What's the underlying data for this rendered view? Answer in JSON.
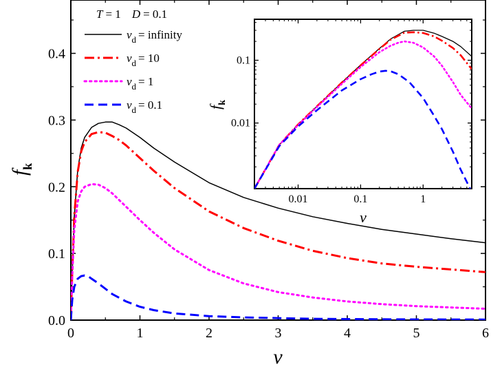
{
  "chart_data": [
    {
      "type": "line",
      "title": "",
      "xlabel": "v",
      "ylabel": "f",
      "ylabel_sub": "k",
      "xlim": [
        0,
        6
      ],
      "ylim": [
        0,
        0.48
      ],
      "xticks": [
        0,
        1,
        2,
        3,
        4,
        5,
        6
      ],
      "yticks": [
        0.0,
        0.1,
        0.2,
        0.3,
        0.4
      ],
      "xtick_labels": [
        "0",
        "1",
        "2",
        "3",
        "4",
        "5",
        "6"
      ],
      "ytick_labels": [
        "0.0",
        "0.1",
        "0.2",
        "0.3",
        "0.4"
      ],
      "legend": {
        "position": "top-left",
        "header": {
          "T": "T",
          "T_value": "= 1",
          "D": "D",
          "D_value": "= 0.1"
        },
        "var": "v",
        "var_sub": "d"
      },
      "series": [
        {
          "name": "= infinity",
          "color": "#000000",
          "style": "solid",
          "x": [
            0,
            0.02,
            0.05,
            0.1,
            0.15,
            0.2,
            0.3,
            0.4,
            0.5,
            0.6,
            0.7,
            0.8,
            1.0,
            1.2,
            1.5,
            2.0,
            2.5,
            3.0,
            3.5,
            4.0,
            4.5,
            5.0,
            5.5,
            6.0
          ],
          "y": [
            0,
            0.07,
            0.155,
            0.225,
            0.258,
            0.274,
            0.289,
            0.295,
            0.297,
            0.297,
            0.293,
            0.288,
            0.274,
            0.258,
            0.237,
            0.206,
            0.184,
            0.168,
            0.155,
            0.145,
            0.136,
            0.129,
            0.122,
            0.116
          ]
        },
        {
          "name": "= 10",
          "color": "#ff0000",
          "style": "dashdot",
          "x": [
            0,
            0.02,
            0.05,
            0.1,
            0.15,
            0.2,
            0.3,
            0.4,
            0.5,
            0.6,
            0.7,
            0.8,
            1.0,
            1.2,
            1.5,
            2.0,
            2.5,
            3.0,
            3.5,
            4.0,
            4.5,
            5.0,
            5.5,
            6.0
          ],
          "y": [
            0,
            0.07,
            0.155,
            0.222,
            0.253,
            0.267,
            0.279,
            0.282,
            0.281,
            0.276,
            0.27,
            0.262,
            0.243,
            0.224,
            0.198,
            0.163,
            0.138,
            0.119,
            0.104,
            0.093,
            0.085,
            0.08,
            0.076,
            0.072
          ]
        },
        {
          "name": "= 1",
          "color": "#ff00ff",
          "style": "dotted",
          "x": [
            0,
            0.02,
            0.05,
            0.1,
            0.15,
            0.2,
            0.3,
            0.4,
            0.5,
            0.6,
            0.7,
            0.8,
            1.0,
            1.2,
            1.5,
            2.0,
            2.5,
            3.0,
            3.5,
            4.0,
            4.5,
            5.0,
            5.5,
            6.0
          ],
          "y": [
            0,
            0.065,
            0.135,
            0.178,
            0.193,
            0.2,
            0.204,
            0.203,
            0.198,
            0.19,
            0.18,
            0.17,
            0.15,
            0.131,
            0.106,
            0.075,
            0.055,
            0.042,
            0.034,
            0.028,
            0.024,
            0.021,
            0.019,
            0.017
          ]
        },
        {
          "name": "= 0.1",
          "color": "#0000ff",
          "style": "dashed",
          "x": [
            0,
            0.02,
            0.05,
            0.1,
            0.15,
            0.2,
            0.25,
            0.3,
            0.4,
            0.5,
            0.6,
            0.8,
            1.0,
            1.2,
            1.5,
            2.0,
            2.5,
            3.0,
            3.5,
            4.0,
            5.0,
            6.0
          ],
          "y": [
            0,
            0.03,
            0.05,
            0.062,
            0.066,
            0.067,
            0.066,
            0.062,
            0.055,
            0.047,
            0.039,
            0.028,
            0.02,
            0.015,
            0.01,
            0.006,
            0.004,
            0.003,
            0.002,
            0.0015,
            0.001,
            0.0008
          ]
        }
      ]
    },
    {
      "type": "line",
      "title": "",
      "xlabel": "v",
      "ylabel": "f",
      "ylabel_sub": "k",
      "xscale": "log",
      "yscale": "log",
      "xlim": [
        0.002,
        6
      ],
      "ylim": [
        0.0009,
        0.45
      ],
      "xticks": [
        0.01,
        0.1,
        1
      ],
      "yticks": [
        0.01,
        0.1
      ],
      "xtick_labels": [
        "0.01",
        "0.1",
        "1"
      ],
      "ytick_labels": [
        "0.01",
        "0.1"
      ],
      "series": [
        {
          "name": "= infinity",
          "color": "#000000",
          "style": "solid",
          "x": [
            0.002,
            0.005,
            0.01,
            0.02,
            0.05,
            0.1,
            0.2,
            0.3,
            0.5,
            0.7,
            1,
            1.5,
            2,
            3,
            4,
            6
          ],
          "y": [
            0.0009,
            0.0045,
            0.0095,
            0.0185,
            0.044,
            0.084,
            0.154,
            0.218,
            0.29,
            0.3,
            0.3,
            0.27,
            0.24,
            0.2,
            0.165,
            0.115
          ]
        },
        {
          "name": "= 10",
          "color": "#ff0000",
          "style": "dashdot",
          "x": [
            0.002,
            0.005,
            0.01,
            0.02,
            0.05,
            0.1,
            0.2,
            0.3,
            0.5,
            0.7,
            1,
            1.5,
            2,
            3,
            4,
            6
          ],
          "y": [
            0.0009,
            0.0045,
            0.0095,
            0.0185,
            0.044,
            0.083,
            0.152,
            0.212,
            0.275,
            0.28,
            0.272,
            0.24,
            0.205,
            0.157,
            0.12,
            0.072
          ]
        },
        {
          "name": "= 1",
          "color": "#ff00ff",
          "style": "dotted",
          "x": [
            0.002,
            0.005,
            0.01,
            0.02,
            0.05,
            0.1,
            0.2,
            0.3,
            0.4,
            0.5,
            0.7,
            1,
            1.5,
            2,
            3,
            4,
            6
          ],
          "y": [
            0.0009,
            0.0045,
            0.0093,
            0.018,
            0.042,
            0.078,
            0.135,
            0.17,
            0.19,
            0.2,
            0.19,
            0.16,
            0.115,
            0.082,
            0.045,
            0.028,
            0.017
          ]
        },
        {
          "name": "= 0.1",
          "color": "#0000ff",
          "style": "dashed",
          "x": [
            0.002,
            0.005,
            0.01,
            0.02,
            0.05,
            0.1,
            0.15,
            0.2,
            0.25,
            0.3,
            0.4,
            0.6,
            1,
            1.5,
            2,
            3,
            4,
            6
          ],
          "y": [
            0.0009,
            0.0043,
            0.0088,
            0.016,
            0.033,
            0.05,
            0.06,
            0.066,
            0.068,
            0.067,
            0.06,
            0.045,
            0.025,
            0.013,
            0.008,
            0.0035,
            0.0018,
            0.0008
          ]
        }
      ]
    }
  ]
}
